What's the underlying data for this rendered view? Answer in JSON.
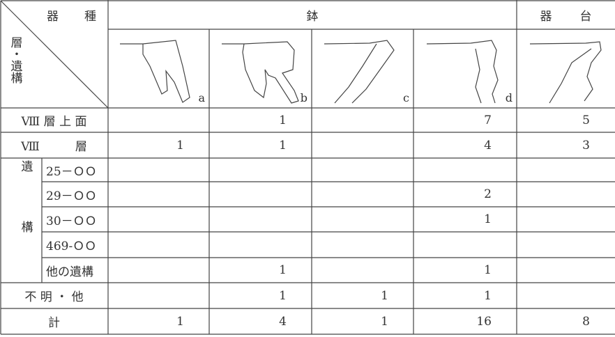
{
  "header": {
    "corner_top": "器　種",
    "corner_left": "層・遺構",
    "groups": [
      "鉢",
      "器台"
    ],
    "sub_labels": [
      "a",
      "b",
      "c",
      "d"
    ]
  },
  "rows": [
    {
      "label": "Ⅷ 層 上 面",
      "values": [
        null,
        1,
        null,
        7,
        5
      ]
    },
    {
      "label": "Ⅷ　　　層",
      "values": [
        1,
        1,
        null,
        4,
        3
      ]
    },
    {
      "label": "遺構",
      "subrows": [
        {
          "label": "25－ＯＯ",
          "values": [
            null,
            null,
            null,
            null,
            null
          ]
        },
        {
          "label": "29－ＯＯ",
          "values": [
            null,
            null,
            null,
            2,
            null
          ]
        },
        {
          "label": "30－ＯＯ",
          "values": [
            null,
            null,
            null,
            1,
            null
          ]
        },
        {
          "label": "469-ＯＯ",
          "values": [
            null,
            null,
            null,
            null,
            null
          ]
        },
        {
          "label": "他の遺構",
          "values": [
            null,
            1,
            null,
            1,
            null
          ]
        }
      ]
    },
    {
      "label": "不 明 ・ 他",
      "values": [
        null,
        1,
        1,
        1,
        null
      ]
    },
    {
      "label": "計",
      "values": [
        1,
        4,
        1,
        16,
        8
      ]
    }
  ]
}
